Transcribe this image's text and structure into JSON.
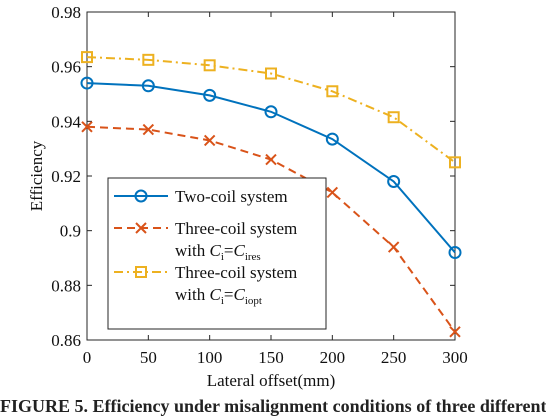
{
  "chart_data": {
    "type": "line",
    "xlabel": "Lateral offset(mm)",
    "ylabel": "Efficiency",
    "xlim": [
      0,
      300
    ],
    "ylim": [
      0.86,
      0.98
    ],
    "x_ticks": [
      0,
      50,
      100,
      150,
      200,
      250,
      300
    ],
    "x_tick_labels": [
      "0",
      "50",
      "100",
      "150",
      "200",
      "250",
      "300"
    ],
    "y_ticks": [
      0.86,
      0.88,
      0.9,
      0.92,
      0.94,
      0.96,
      0.98
    ],
    "y_tick_labels": [
      "0.86",
      "0.88",
      "0.9",
      "0.92",
      "0.94",
      "0.96",
      "0.98"
    ],
    "grid": false,
    "legend_position": "bottom-left",
    "x": [
      0,
      50,
      100,
      150,
      200,
      250,
      300
    ],
    "series": [
      {
        "name": "Two-coil system",
        "values": [
          0.954,
          0.953,
          0.9495,
          0.9435,
          0.9335,
          0.918,
          0.892
        ],
        "color": "#0072BD",
        "line_style": "solid",
        "marker": "circle"
      },
      {
        "name": "Three-coil system with Ci=Cires",
        "values": [
          0.938,
          0.937,
          0.933,
          0.926,
          0.914,
          0.894,
          0.863
        ],
        "color": "#D95319",
        "line_style": "dashed",
        "marker": "x"
      },
      {
        "name": "Three-coil system with Ci=Ciopt",
        "values": [
          0.9635,
          0.9625,
          0.9605,
          0.9575,
          0.951,
          0.9415,
          0.925
        ],
        "color": "#EDB120",
        "line_style": "dash-dot",
        "marker": "square"
      }
    ],
    "legend": {
      "entries": [
        {
          "line1": "Two-coil system"
        },
        {
          "line1": "Three-coil system",
          "line2_prefix": "with ",
          "var": "C",
          "sub1": "i",
          "eq": "=",
          "sub2": "ires"
        },
        {
          "line1": "Three-coil system",
          "line2_prefix": "with ",
          "var": "C",
          "sub1": "i",
          "eq": "=",
          "sub2": "iopt"
        }
      ]
    }
  },
  "caption": "FIGURE 5. Efficiency under misalignment conditions of three different"
}
